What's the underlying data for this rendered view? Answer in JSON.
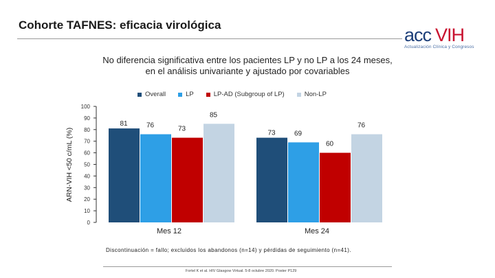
{
  "header": {
    "title": "Cohorte TAFNES: eficacia virológica",
    "logo_main": "acc",
    "logo_vih": "VIH",
    "logo_tagline": "Actualización Clínica y Congresos"
  },
  "subtitle": {
    "line1": "No diferencia significativa entre los pacientes LP y no LP a los 24 meses,",
    "line2": "en el análisis univariante y ajustado por covariables"
  },
  "colors": {
    "overall": "#1f4e79",
    "lp": "#2e9fe6",
    "lp_ad": "#c00000",
    "non_lp": "#c3d4e3"
  },
  "chart_data": {
    "type": "bar",
    "ylabel": "ARN-VIH <50 c/mL (%)",
    "ylim": [
      0,
      100
    ],
    "yticks": [
      0,
      10,
      20,
      30,
      40,
      50,
      60,
      70,
      80,
      90,
      100
    ],
    "categories": [
      "Mes 12",
      "Mes 24"
    ],
    "legend_position": "top",
    "series": [
      {
        "name": "Overall",
        "key": "overall",
        "values": [
          81,
          73
        ]
      },
      {
        "name": "LP",
        "key": "lp",
        "values": [
          76,
          69
        ]
      },
      {
        "name": "LP-AD (Subgroup of LP)",
        "key": "lp_ad",
        "values": [
          73,
          60
        ]
      },
      {
        "name": "Non-LP",
        "key": "non_lp",
        "values": [
          85,
          76
        ]
      }
    ]
  },
  "footnote": "Discontinuación = fallo; excluidos los abandonos (n=14) y pérdidas de seguimiento (n=41).",
  "reference": "Fortel K et al. HIV Glasgow Virtual. 5-8 octubre 2020. Poster P129"
}
